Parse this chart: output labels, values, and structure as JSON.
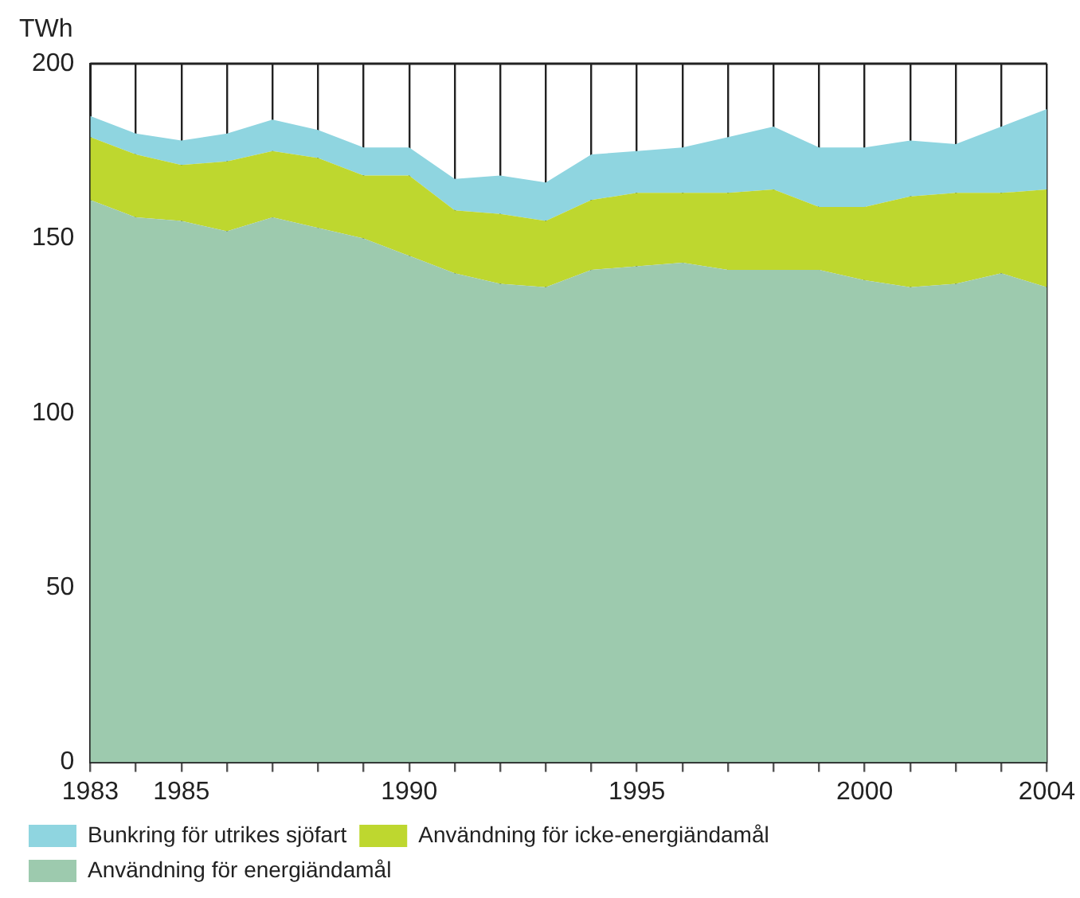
{
  "chart_data": {
    "type": "area",
    "ylabel": "TWh",
    "stacked": true,
    "x": [
      1983,
      1984,
      1985,
      1986,
      1987,
      1988,
      1989,
      1990,
      1991,
      1992,
      1993,
      1994,
      1995,
      1996,
      1997,
      1998,
      1999,
      2000,
      2001,
      2002,
      2003,
      2004
    ],
    "series": [
      {
        "name": "Användning för energiändamål",
        "color": "#9dcaae",
        "values": [
          161,
          156,
          155,
          152,
          156,
          153,
          150,
          145,
          140,
          137,
          136,
          141,
          142,
          143,
          141,
          141,
          141,
          138,
          136,
          137,
          140,
          136
        ]
      },
      {
        "name": "Användning för icke-energiändamål",
        "color": "#bed72f",
        "values": [
          18,
          18,
          16,
          20,
          19,
          20,
          18,
          23,
          18,
          20,
          19,
          20,
          21,
          20,
          22,
          23,
          18,
          21,
          26,
          26,
          23,
          28
        ]
      },
      {
        "name": "Bunkring för utrikes sjöfart",
        "color": "#8fd5e0",
        "values": [
          6,
          6,
          7,
          8,
          9,
          8,
          8,
          8,
          9,
          11,
          11,
          13,
          12,
          13,
          16,
          18,
          17,
          17,
          16,
          14,
          19,
          23
        ]
      }
    ],
    "xlim": [
      1983,
      2004
    ],
    "xticks": [
      1983,
      {
        "value": 1984,
        "label": null
      },
      1985,
      {
        "value": 1986,
        "label": null
      },
      {
        "value": 1987,
        "label": null
      },
      {
        "value": 1988,
        "label": null
      },
      {
        "value": 1989,
        "label": null
      },
      1990,
      {
        "value": 1991,
        "label": null
      },
      {
        "value": 1992,
        "label": null
      },
      {
        "value": 1993,
        "label": null
      },
      {
        "value": 1994,
        "label": null
      },
      1995,
      {
        "value": 1996,
        "label": null
      },
      {
        "value": 1997,
        "label": null
      },
      {
        "value": 1998,
        "label": null
      },
      {
        "value": 1999,
        "label": null
      },
      2000,
      {
        "value": 2001,
        "label": null
      },
      {
        "value": 2002,
        "label": null
      },
      {
        "value": 2003,
        "label": null
      },
      2004
    ],
    "ylim": [
      0,
      200
    ],
    "yticks": [
      0,
      50,
      100,
      150,
      200
    ],
    "grid": "x",
    "legend": "bottom"
  }
}
